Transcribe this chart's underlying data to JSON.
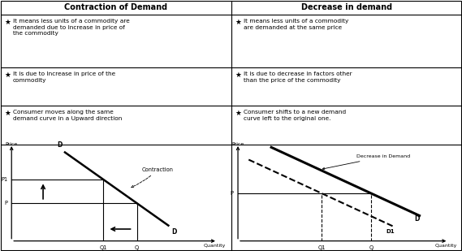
{
  "title_left": "Contraction of Demand",
  "title_right": "Decrease in demand",
  "left_bullets": [
    "It means less units of a commodity are\ndemanded due to Increase in price of\nthe commodity",
    "It is due to Increase in price of the\ncommodity",
    "Consumer moves along the same\ndemand curve in a Upward direction"
  ],
  "right_bullets": [
    "It means less units of a commodity\nare demanded at the same price",
    "It is due to decrease in factors other\nthan the price of the commodity",
    "Consumer shifts to a new demand\ncurve left to the original one."
  ],
  "bg_color": "#ffffff",
  "border_color": "#000000",
  "text_color": "#000000"
}
